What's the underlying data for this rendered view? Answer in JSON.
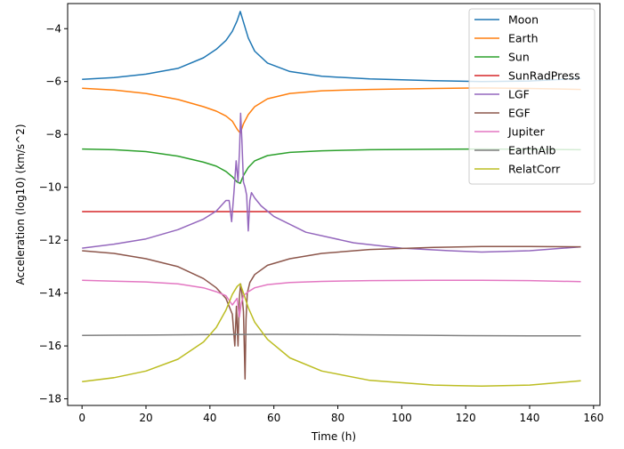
{
  "chart_data": {
    "type": "line",
    "title": "",
    "xlabel": "Time (h)",
    "ylabel": "Acceleration (log10) (km/s^2)",
    "xlim": [
      -4.5,
      162
    ],
    "ylim": [
      -18.25,
      -3.05
    ],
    "x_ticks": [
      0,
      20,
      40,
      60,
      80,
      100,
      120,
      140,
      160
    ],
    "y_ticks": [
      -18,
      -16,
      -14,
      -12,
      -10,
      -8,
      -6,
      -4
    ],
    "grid": false,
    "legend_position": "top-right",
    "series": [
      {
        "name": "Moon",
        "color": "#1f77b4",
        "x": [
          0,
          10,
          20,
          30,
          38,
          42,
          45,
          47,
          48.5,
          49.5,
          50.5,
          52,
          54,
          58,
          65,
          75,
          90,
          110,
          125,
          140,
          156
        ],
        "y": [
          -5.92,
          -5.85,
          -5.72,
          -5.5,
          -5.1,
          -4.78,
          -4.45,
          -4.1,
          -3.7,
          -3.35,
          -3.75,
          -4.35,
          -4.85,
          -5.3,
          -5.62,
          -5.8,
          -5.9,
          -5.97,
          -6.0,
          -5.98,
          -5.88
        ]
      },
      {
        "name": "Earth",
        "color": "#ff7f0e",
        "x": [
          0,
          10,
          20,
          30,
          38,
          42,
          45,
          47,
          48.5,
          49.5,
          50.5,
          52,
          54,
          58,
          65,
          75,
          90,
          110,
          125,
          140,
          156
        ],
        "y": [
          -6.25,
          -6.32,
          -6.45,
          -6.68,
          -6.95,
          -7.12,
          -7.3,
          -7.5,
          -7.8,
          -7.95,
          -7.6,
          -7.25,
          -6.95,
          -6.65,
          -6.45,
          -6.35,
          -6.3,
          -6.26,
          -6.24,
          -6.26,
          -6.3
        ]
      },
      {
        "name": "Sun",
        "color": "#2ca02c",
        "x": [
          0,
          10,
          20,
          30,
          38,
          42,
          45,
          47,
          48.5,
          49.5,
          50.5,
          52,
          54,
          58,
          65,
          75,
          90,
          110,
          125,
          140,
          156
        ],
        "y": [
          -8.55,
          -8.58,
          -8.65,
          -8.82,
          -9.05,
          -9.2,
          -9.4,
          -9.6,
          -9.8,
          -9.85,
          -9.55,
          -9.25,
          -9.0,
          -8.8,
          -8.68,
          -8.62,
          -8.58,
          -8.56,
          -8.55,
          -8.56,
          -8.58
        ]
      },
      {
        "name": "SunRadPress",
        "color": "#d62728",
        "x": [
          0,
          156
        ],
        "y": [
          -10.92,
          -10.92
        ]
      },
      {
        "name": "LGF",
        "color": "#9467bd",
        "x": [
          0,
          10,
          20,
          30,
          38,
          42,
          45,
          46,
          46.8,
          47.5,
          48.2,
          48.8,
          49.3,
          49.6,
          50,
          50.5,
          51,
          51.5,
          52,
          52.5,
          53,
          54,
          56,
          60,
          70,
          85,
          100,
          115,
          125,
          140,
          156
        ],
        "y": [
          -12.3,
          -12.15,
          -11.95,
          -11.6,
          -11.2,
          -10.9,
          -10.5,
          -10.5,
          -11.3,
          -10.2,
          -9.0,
          -9.8,
          -8.5,
          -7.2,
          -8.2,
          -9.8,
          -10.0,
          -10.3,
          -11.65,
          -10.5,
          -10.2,
          -10.4,
          -10.7,
          -11.1,
          -11.7,
          -12.1,
          -12.3,
          -12.4,
          -12.45,
          -12.4,
          -12.25
        ]
      },
      {
        "name": "EGF",
        "color": "#8c564b",
        "x": [
          0,
          10,
          20,
          30,
          38,
          42,
          45,
          47,
          47.8,
          48.3,
          48.8,
          49.2,
          49.6,
          50,
          50.5,
          51,
          51.3,
          51.7,
          52.5,
          54,
          58,
          65,
          75,
          90,
          110,
          125,
          140,
          156
        ],
        "y": [
          -12.4,
          -12.5,
          -12.7,
          -13.0,
          -13.45,
          -13.8,
          -14.2,
          -14.8,
          -16.0,
          -14.5,
          -16.0,
          -14.2,
          -13.65,
          -14.0,
          -14.7,
          -17.25,
          -15.0,
          -14.0,
          -13.6,
          -13.3,
          -12.95,
          -12.7,
          -12.5,
          -12.35,
          -12.27,
          -12.24,
          -12.24,
          -12.25
        ]
      },
      {
        "name": "Jupiter",
        "color": "#e377c2",
        "x": [
          0,
          10,
          20,
          30,
          38,
          42,
          45,
          47,
          48.5,
          49.2,
          49.8,
          50.5,
          52,
          54,
          58,
          65,
          75,
          90,
          110,
          125,
          140,
          156
        ],
        "y": [
          -13.52,
          -13.55,
          -13.58,
          -13.65,
          -13.8,
          -13.95,
          -14.1,
          -14.45,
          -14.2,
          -14.9,
          -14.4,
          -14.1,
          -13.95,
          -13.8,
          -13.68,
          -13.6,
          -13.56,
          -13.53,
          -13.52,
          -13.52,
          -13.53,
          -13.57
        ]
      },
      {
        "name": "EarthAlb",
        "color": "#7f7f7f",
        "x": [
          0,
          20,
          40,
          60,
          80,
          100,
          120,
          140,
          156
        ],
        "y": [
          -15.6,
          -15.59,
          -15.57,
          -15.56,
          -15.57,
          -15.59,
          -15.61,
          -15.62,
          -15.62
        ]
      },
      {
        "name": "RelatCorr",
        "color": "#bcbd22",
        "x": [
          0,
          10,
          20,
          30,
          38,
          42,
          45,
          47,
          48.5,
          49.5,
          50.5,
          52,
          54,
          58,
          65,
          75,
          90,
          110,
          125,
          140,
          156
        ],
        "y": [
          -17.35,
          -17.2,
          -16.95,
          -16.5,
          -15.85,
          -15.3,
          -14.65,
          -14.05,
          -13.75,
          -13.65,
          -14.0,
          -14.55,
          -15.1,
          -15.75,
          -16.45,
          -16.95,
          -17.3,
          -17.48,
          -17.52,
          -17.48,
          -17.32
        ]
      }
    ]
  }
}
